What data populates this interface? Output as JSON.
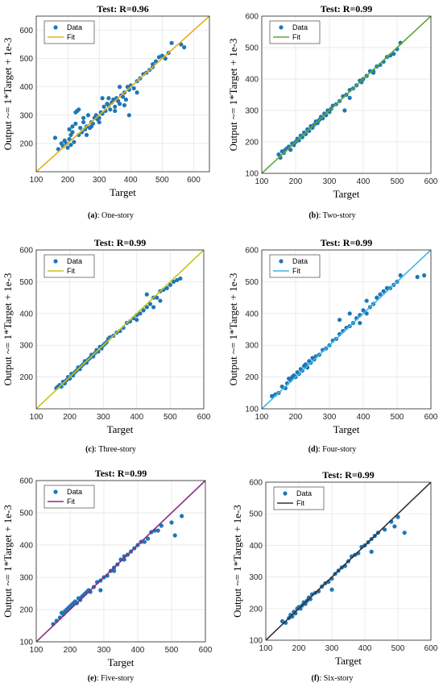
{
  "chart_data": [
    {
      "type": "scatter",
      "title": "Test: R=0.96",
      "xlabel": "Target",
      "ylabel": "Output ~= 1*Target + 1e-3",
      "xlim": [
        100,
        650
      ],
      "ylim": [
        100,
        650
      ],
      "xticks": [
        100,
        200,
        300,
        400,
        500,
        600
      ],
      "yticks": [
        200,
        300,
        400,
        500,
        600
      ],
      "grid": true,
      "legend": "top-left",
      "fit_color": "#e5b21b",
      "point_color": "#1f77b4",
      "series": [
        {
          "name": "Data",
          "x": [
            160,
            170,
            180,
            185,
            190,
            195,
            200,
            205,
            210,
            210,
            215,
            220,
            225,
            230,
            235,
            240,
            245,
            250,
            255,
            260,
            265,
            270,
            275,
            280,
            285,
            290,
            295,
            300,
            305,
            310,
            315,
            320,
            325,
            330,
            335,
            340,
            345,
            350,
            355,
            360,
            365,
            370,
            375,
            380,
            385,
            390,
            395,
            400,
            410,
            420,
            430,
            440,
            450,
            460,
            470,
            480,
            490,
            500,
            510,
            520,
            530,
            560,
            570,
            225,
            235,
            250,
            275,
            300,
            330,
            365,
            395,
            205,
            215,
            260,
            310,
            350,
            380,
            420,
            470
          ],
          "y": [
            220,
            180,
            200,
            190,
            210,
            200,
            185,
            215,
            230,
            195,
            240,
            205,
            270,
            315,
            230,
            255,
            240,
            275,
            250,
            260,
            300,
            255,
            275,
            270,
            290,
            300,
            285,
            290,
            310,
            305,
            330,
            315,
            340,
            335,
            320,
            345,
            355,
            330,
            360,
            350,
            340,
            370,
            365,
            380,
            355,
            400,
            390,
            405,
            395,
            420,
            430,
            445,
            450,
            460,
            480,
            490,
            505,
            510,
            500,
            520,
            555,
            550,
            540,
            310,
            320,
            290,
            260,
            275,
            360,
            400,
            300,
            250,
            260,
            230,
            360,
            315,
            335,
            380,
            470
          ]
        },
        {
          "name": "Fit",
          "x": [
            100,
            650
          ],
          "y": [
            100,
            650
          ]
        }
      ]
    },
    {
      "type": "scatter",
      "title": "Test: R=0.99",
      "xlabel": "Target",
      "ylabel": "Output ~= 1*Target + 1e-3",
      "xlim": [
        100,
        600
      ],
      "ylim": [
        100,
        600
      ],
      "xticks": [
        100,
        200,
        300,
        400,
        500,
        600
      ],
      "yticks": [
        100,
        200,
        300,
        400,
        500,
        600
      ],
      "grid": true,
      "legend": "top-left",
      "fit_color": "#5fa832",
      "point_color": "#1f77b4",
      "series": [
        {
          "name": "Data",
          "x": [
            150,
            155,
            160,
            165,
            170,
            175,
            180,
            185,
            190,
            195,
            200,
            205,
            210,
            215,
            220,
            225,
            230,
            235,
            240,
            245,
            250,
            255,
            260,
            265,
            270,
            275,
            280,
            285,
            290,
            295,
            300,
            305,
            310,
            320,
            330,
            340,
            350,
            360,
            370,
            380,
            390,
            400,
            410,
            420,
            430,
            440,
            450,
            460,
            470,
            480,
            490,
            500,
            510,
            345,
            360,
            395,
            430
          ],
          "y": [
            160,
            150,
            170,
            165,
            175,
            180,
            185,
            175,
            195,
            190,
            200,
            210,
            205,
            220,
            215,
            230,
            225,
            240,
            235,
            250,
            245,
            255,
            265,
            260,
            270,
            280,
            275,
            290,
            285,
            300,
            295,
            305,
            315,
            320,
            330,
            345,
            350,
            365,
            370,
            380,
            395,
            400,
            410,
            425,
            425,
            440,
            445,
            455,
            470,
            475,
            480,
            495,
            515,
            300,
            340,
            390,
            420
          ]
        },
        {
          "name": "Fit",
          "x": [
            100,
            600
          ],
          "y": [
            100,
            600
          ]
        }
      ]
    },
    {
      "type": "scatter",
      "title": "Test: R=0.99",
      "xlabel": "Target",
      "ylabel": "Output ~= 1*Target + 1e-3",
      "xlim": [
        100,
        600
      ],
      "ylim": [
        100,
        600
      ],
      "xticks": [
        100,
        200,
        300,
        400,
        500,
        600
      ],
      "yticks": [
        200,
        300,
        400,
        500,
        600
      ],
      "grid": true,
      "legend": "top-left",
      "fit_color": "#c8c41a",
      "point_color": "#1f77b4",
      "series": [
        {
          "name": "Data",
          "x": [
            160,
            165,
            170,
            175,
            180,
            185,
            190,
            195,
            200,
            205,
            210,
            215,
            220,
            225,
            230,
            235,
            240,
            245,
            250,
            255,
            260,
            265,
            270,
            275,
            280,
            285,
            290,
            295,
            300,
            305,
            310,
            315,
            320,
            330,
            340,
            350,
            360,
            370,
            380,
            390,
            400,
            410,
            420,
            430,
            440,
            450,
            460,
            470,
            480,
            490,
            500,
            510,
            520,
            530,
            400,
            430,
            450,
            470
          ],
          "y": [
            165,
            170,
            175,
            170,
            185,
            180,
            190,
            200,
            195,
            210,
            205,
            215,
            220,
            230,
            225,
            235,
            240,
            250,
            245,
            255,
            260,
            270,
            265,
            275,
            285,
            280,
            295,
            290,
            300,
            305,
            310,
            320,
            325,
            330,
            340,
            345,
            355,
            370,
            375,
            385,
            395,
            400,
            410,
            420,
            430,
            450,
            450,
            470,
            475,
            480,
            490,
            500,
            505,
            510,
            380,
            460,
            420,
            440
          ]
        },
        {
          "name": "Fit",
          "x": [
            100,
            600
          ],
          "y": [
            100,
            600
          ]
        }
      ]
    },
    {
      "type": "scatter",
      "title": "Test: R=0.99",
      "xlabel": "Target",
      "ylabel": "Output ~= 1*Target + 1e-3",
      "xlim": [
        100,
        600
      ],
      "ylim": [
        100,
        600
      ],
      "xticks": [
        100,
        200,
        300,
        400,
        500,
        600
      ],
      "yticks": [
        100,
        200,
        300,
        400,
        500,
        600
      ],
      "grid": true,
      "legend": "top-left",
      "fit_color": "#3fb7e6",
      "point_color": "#1f77b4",
      "series": [
        {
          "name": "Data",
          "x": [
            130,
            140,
            150,
            160,
            170,
            175,
            180,
            185,
            190,
            195,
            200,
            205,
            210,
            215,
            220,
            225,
            230,
            235,
            240,
            245,
            250,
            255,
            260,
            270,
            280,
            290,
            300,
            310,
            320,
            330,
            340,
            350,
            360,
            370,
            380,
            390,
            400,
            410,
            420,
            430,
            440,
            450,
            460,
            470,
            480,
            490,
            500,
            510,
            560,
            580,
            330,
            360,
            390,
            410
          ],
          "y": [
            140,
            145,
            150,
            170,
            165,
            180,
            195,
            190,
            200,
            205,
            200,
            215,
            210,
            225,
            220,
            235,
            240,
            230,
            250,
            245,
            260,
            255,
            265,
            270,
            285,
            290,
            300,
            315,
            320,
            335,
            345,
            355,
            360,
            370,
            385,
            395,
            410,
            400,
            420,
            430,
            450,
            460,
            470,
            480,
            480,
            490,
            500,
            520,
            515,
            520,
            380,
            400,
            370,
            440
          ]
        },
        {
          "name": "Fit",
          "x": [
            100,
            600
          ],
          "y": [
            100,
            600
          ]
        }
      ]
    },
    {
      "type": "scatter",
      "title": "Test: R=0.99",
      "xlabel": "Target",
      "ylabel": "Output ~= 1*Target + 1e-3",
      "xlim": [
        100,
        600
      ],
      "ylim": [
        100,
        600
      ],
      "xticks": [
        100,
        200,
        300,
        400,
        500,
        600
      ],
      "yticks": [
        100,
        200,
        300,
        400,
        500,
        600
      ],
      "grid": true,
      "legend": "top-left",
      "fit_color": "#8a2a8c",
      "point_color": "#1f77b4",
      "series": [
        {
          "name": "Data",
          "x": [
            150,
            160,
            170,
            175,
            180,
            185,
            190,
            195,
            200,
            205,
            210,
            215,
            220,
            225,
            230,
            235,
            240,
            245,
            250,
            255,
            260,
            270,
            280,
            290,
            300,
            310,
            320,
            330,
            340,
            350,
            360,
            370,
            380,
            390,
            400,
            410,
            420,
            430,
            440,
            450,
            460,
            470,
            500,
            510,
            530,
            290,
            330,
            360
          ],
          "y": [
            155,
            165,
            175,
            190,
            185,
            195,
            200,
            205,
            210,
            215,
            220,
            225,
            220,
            235,
            230,
            240,
            245,
            250,
            255,
            260,
            255,
            270,
            285,
            290,
            300,
            305,
            320,
            330,
            340,
            355,
            365,
            370,
            380,
            390,
            400,
            410,
            410,
            420,
            440,
            445,
            445,
            460,
            470,
            430,
            490,
            260,
            320,
            355
          ]
        },
        {
          "name": "Fit",
          "x": [
            100,
            600
          ],
          "y": [
            100,
            600
          ]
        }
      ]
    },
    {
      "type": "scatter",
      "title": "Test: R=0.99",
      "xlabel": "Target",
      "ylabel": "Output ~= 1*Target + 1e-3",
      "xlim": [
        100,
        600
      ],
      "ylim": [
        100,
        600
      ],
      "xticks": [
        100,
        200,
        300,
        400,
        500,
        600
      ],
      "yticks": [
        100,
        200,
        300,
        400,
        500,
        600
      ],
      "grid": true,
      "legend": "top-left",
      "fit_color": "#333333",
      "point_color": "#1f77b4",
      "series": [
        {
          "name": "Data",
          "x": [
            150,
            160,
            170,
            175,
            180,
            185,
            190,
            195,
            200,
            205,
            210,
            215,
            220,
            225,
            230,
            235,
            240,
            250,
            260,
            270,
            280,
            290,
            300,
            310,
            320,
            330,
            340,
            350,
            360,
            370,
            380,
            390,
            400,
            410,
            420,
            430,
            440,
            460,
            480,
            490,
            500,
            520,
            300,
            420
          ],
          "y": [
            160,
            155,
            170,
            180,
            175,
            190,
            185,
            200,
            205,
            200,
            210,
            220,
            215,
            225,
            235,
            230,
            245,
            250,
            255,
            270,
            280,
            285,
            295,
            310,
            320,
            330,
            335,
            350,
            365,
            370,
            375,
            395,
            400,
            410,
            420,
            430,
            440,
            450,
            475,
            460,
            490,
            440,
            260,
            380
          ]
        },
        {
          "name": "Fit",
          "x": [
            100,
            600
          ],
          "y": [
            100,
            600
          ]
        }
      ]
    }
  ],
  "captions": [
    {
      "label": "(a)",
      "text": ": One-story"
    },
    {
      "label": "(b)",
      "text": ": Two-story"
    },
    {
      "label": "(c)",
      "text": ": Three-story"
    },
    {
      "label": "(d)",
      "text": ": Four-story"
    },
    {
      "label": "(e)",
      "text": ": Five-story"
    },
    {
      "label": "(f)",
      "text": ": Six-story"
    }
  ]
}
